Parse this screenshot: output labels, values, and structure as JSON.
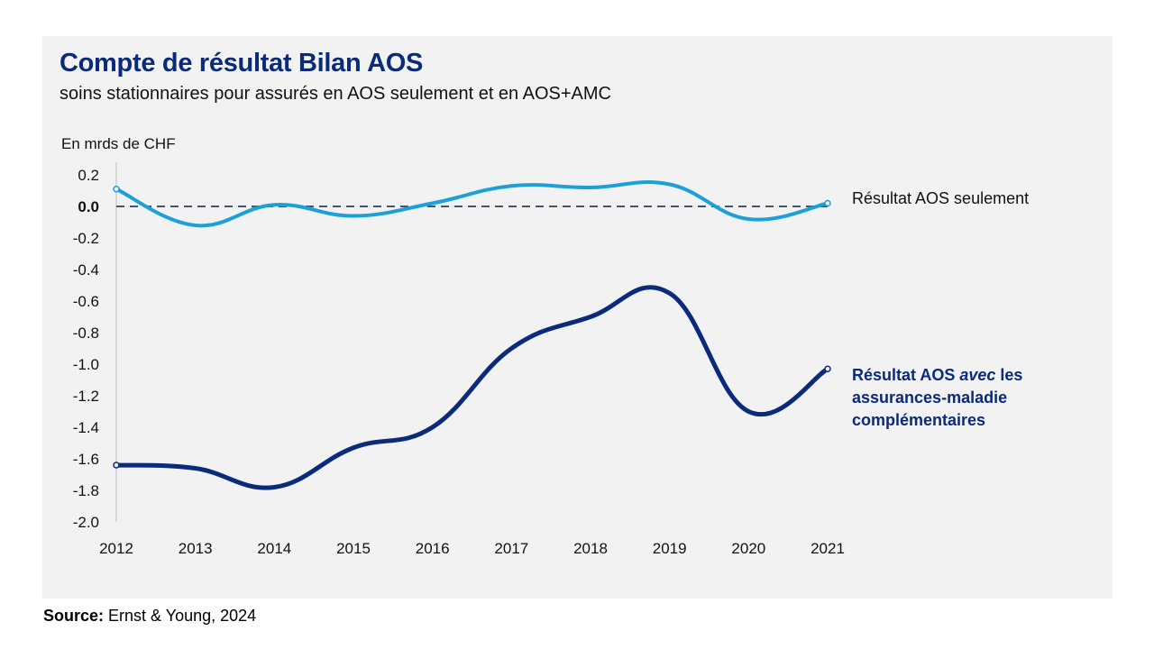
{
  "colors": {
    "light_series": "#1ba1d8",
    "dark_series": "#0a2a7a",
    "zero_line": "#44546a",
    "panel_bg": "#f2f2f2"
  },
  "header": {
    "title": "Compte de résultat Bilan AOS",
    "subtitle": "soins stationnaires pour assurés en AOS seulement et en AOS+AMC",
    "unit": "En mrds de CHF"
  },
  "legend": {
    "light_label": "Résultat AOS seulement",
    "dark_label_part1": "Résultat AOS ",
    "dark_label_part2": "avec",
    "dark_label_part3": " les",
    "dark_label_line2": "assurances-maladie",
    "dark_label_line3": "complémentaires"
  },
  "source": {
    "label": "Source:",
    "text": " Ernst & Young, 2024"
  },
  "chart_data": {
    "type": "line",
    "title": "Compte de résultat Bilan AOS",
    "subtitle": "soins stationnaires pour assurés en AOS seulement et en AOS+AMC",
    "ylabel": "En mrds de CHF",
    "xlabel": "",
    "categories": [
      "2012",
      "2013",
      "2014",
      "2015",
      "2016",
      "2017",
      "2018",
      "2019",
      "2020",
      "2021"
    ],
    "ylim": [
      -2.0,
      0.2
    ],
    "yticks": [
      0.2,
      0.0,
      -0.2,
      -0.4,
      -0.6,
      -0.8,
      -1.0,
      -1.2,
      -1.4,
      -1.6,
      -1.8,
      -2.0
    ],
    "ytick_labels": [
      "0.2",
      "0.0",
      "-0.2",
      "-0.4",
      "-0.6",
      "-0.8",
      "-1.0",
      "-1.2",
      "-1.4",
      "-1.6",
      "-1.8",
      "-2.0"
    ],
    "reference_line": 0.0,
    "series": [
      {
        "name": "Résultat AOS seulement",
        "values": [
          0.11,
          -0.12,
          0.01,
          -0.06,
          0.02,
          0.13,
          0.12,
          0.14,
          -0.08,
          0.02
        ]
      },
      {
        "name": "Résultat AOS avec les assurances-maladie complémentaires",
        "values": [
          -1.64,
          -1.66,
          -1.78,
          -1.53,
          -1.4,
          -0.9,
          -0.7,
          -0.55,
          -1.3,
          -1.03
        ]
      }
    ]
  }
}
